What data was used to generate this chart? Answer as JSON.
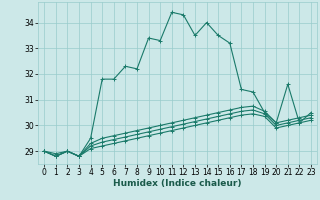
{
  "title": "",
  "xlabel": "Humidex (Indice chaleur)",
  "bg_color": "#cce8e8",
  "grid_color": "#99cccc",
  "line_color": "#1a7a6a",
  "xlim": [
    -0.5,
    23.5
  ],
  "ylim": [
    28.5,
    34.8
  ],
  "xticks": [
    0,
    1,
    2,
    3,
    4,
    5,
    6,
    7,
    8,
    9,
    10,
    11,
    12,
    13,
    14,
    15,
    16,
    17,
    18,
    19,
    20,
    21,
    22,
    23
  ],
  "yticks": [
    29,
    30,
    31,
    32,
    33,
    34
  ],
  "series": [
    [
      29.0,
      28.8,
      29.0,
      28.8,
      29.5,
      31.8,
      31.8,
      32.3,
      32.2,
      33.4,
      33.3,
      34.4,
      34.3,
      33.5,
      34.0,
      33.5,
      33.2,
      31.4,
      31.3,
      30.5,
      30.1,
      31.6,
      30.1,
      30.5
    ],
    [
      29.0,
      28.8,
      29.0,
      28.8,
      29.3,
      29.5,
      29.6,
      29.7,
      29.8,
      29.9,
      30.0,
      30.1,
      30.2,
      30.3,
      30.4,
      30.5,
      30.6,
      30.7,
      30.75,
      30.55,
      30.1,
      30.2,
      30.3,
      30.4
    ],
    [
      29.0,
      28.9,
      29.0,
      28.8,
      29.2,
      29.35,
      29.45,
      29.55,
      29.65,
      29.75,
      29.85,
      29.95,
      30.05,
      30.15,
      30.25,
      30.35,
      30.45,
      30.55,
      30.6,
      30.45,
      30.0,
      30.1,
      30.2,
      30.3
    ],
    [
      29.0,
      28.8,
      29.0,
      28.8,
      29.1,
      29.2,
      29.3,
      29.4,
      29.5,
      29.6,
      29.7,
      29.8,
      29.9,
      30.0,
      30.1,
      30.2,
      30.3,
      30.4,
      30.45,
      30.35,
      29.9,
      30.0,
      30.1,
      30.2
    ]
  ],
  "tick_fontsize": 5.5,
  "xlabel_fontsize": 6.5,
  "xlabel_color": "#1a5a4a"
}
